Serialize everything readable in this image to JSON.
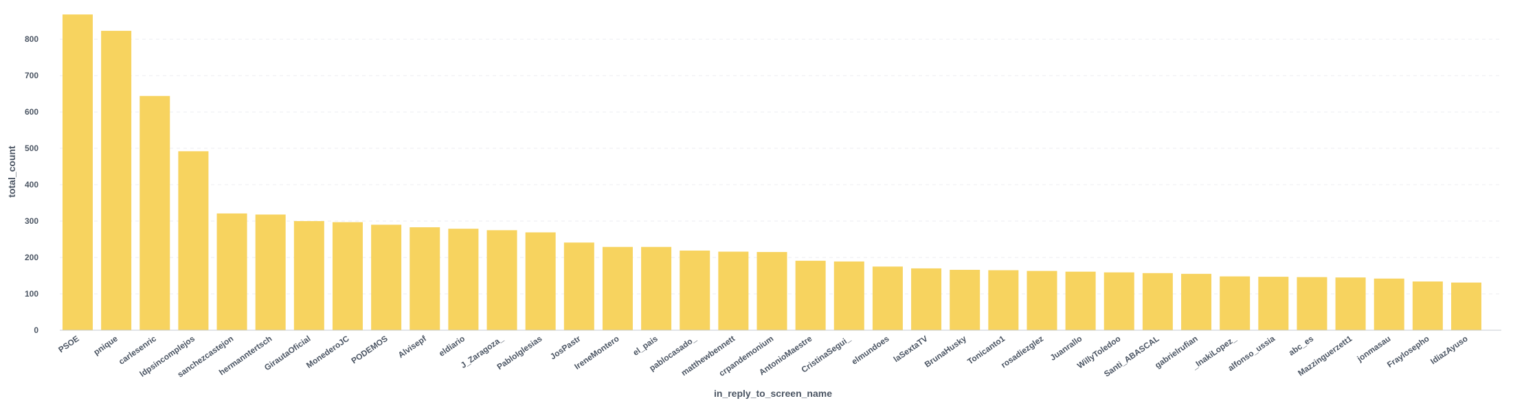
{
  "chart_data": {
    "type": "bar",
    "xlabel": "in_reply_to_screen_name",
    "ylabel": "total_count",
    "ylim": [
      0,
      870
    ],
    "yticks": [
      0,
      100,
      200,
      300,
      400,
      500,
      600,
      700,
      800
    ],
    "grid": true,
    "bar_color": "#f7d35f",
    "categories": [
      "PSOE",
      "pnique",
      "carlesenric",
      "ldpsincomplejos",
      "sanchezcastejon",
      "hermanntertsch",
      "GirautaOficial",
      "MonederoJC",
      "PODEMOS",
      "Alvisepf",
      "eldiario",
      "J_Zaragoza_",
      "PabloIglesias",
      "JosPastr",
      "IreneMontero",
      "el_pais",
      "pablocasado_",
      "matthewbennett",
      "crpandemonium",
      "AntonioMaestre",
      "CristinaSegui_",
      "elmundoes",
      "laSextaTV",
      "BrunaHusky",
      "Tonicanto1",
      "rosadiezglez",
      "Juanrallo",
      "WillyToledoo",
      "Santi_ABASCAL",
      "gabrielrufian",
      "_InakiLopez_",
      "alfonso_ussia",
      "abc_es",
      "Mazzinguerzett1",
      "jonmasau",
      "Fraylosepho",
      "IdiazAyuso"
    ],
    "values": [
      868,
      823,
      644,
      492,
      321,
      318,
      300,
      297,
      290,
      283,
      279,
      275,
      269,
      241,
      229,
      229,
      219,
      216,
      215,
      191,
      189,
      175,
      170,
      166,
      165,
      163,
      161,
      159,
      157,
      155,
      148,
      147,
      146,
      145,
      142,
      134,
      131
    ]
  }
}
